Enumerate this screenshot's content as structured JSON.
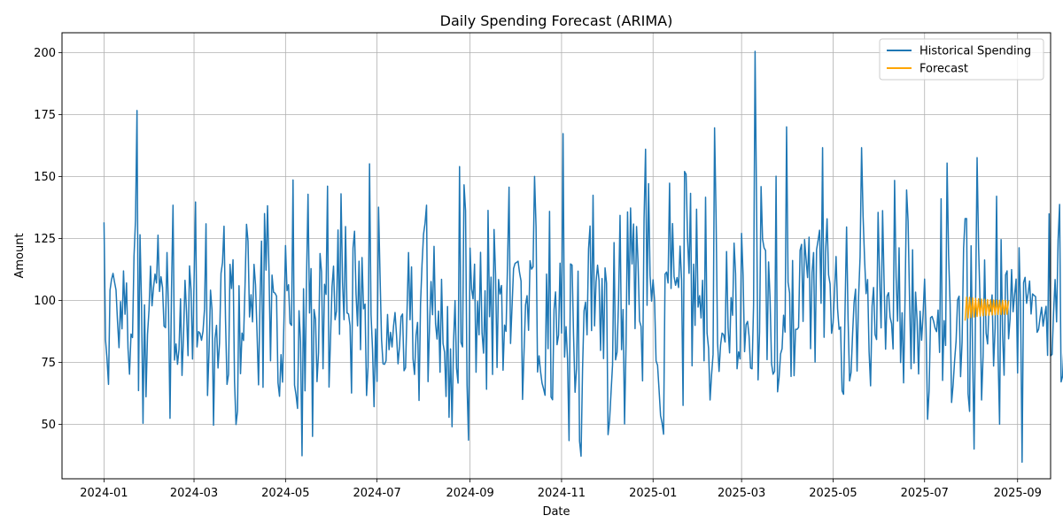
{
  "chart_data": {
    "type": "line",
    "title": "Daily Spending Forecast (ARIMA)",
    "xlabel": "Date",
    "ylabel": "Amount",
    "xlim": [
      "2023-12-04",
      "2025-09-23"
    ],
    "ylim": [
      28,
      208
    ],
    "grid": true,
    "legend_position": "top-right",
    "x_ticks": [
      "2024-01",
      "2024-03",
      "2024-05",
      "2024-07",
      "2024-09",
      "2024-11",
      "2025-01",
      "2025-03",
      "2025-05",
      "2025-07",
      "2025-09"
    ],
    "y_ticks": [
      50,
      75,
      100,
      125,
      150,
      175,
      200
    ],
    "series": [
      {
        "name": "Historical Spending",
        "color": "#1f77b4",
        "x_start": "2024-01-01",
        "x_step_days": 1,
        "values": [
          131.5,
          84.1,
          76.4,
          66.1,
          104.1,
          108.4,
          110.9,
          107.4,
          104.2,
          91.5,
          80.9,
          99.5,
          88.5,
          111.9,
          94.4,
          107.0,
          80.6,
          70.2,
          86.4,
          85.0,
          117.9,
          132.4,
          176.6,
          63.6,
          126.5,
          98.4,
          50.4,
          98.2,
          61.1,
          86.3,
          96.1,
          113.8,
          97.8,
          105.1,
          110.6,
          107.0,
          126.3,
          103.6,
          109.5,
          105.3,
          89.6,
          89.0,
          119.3,
          95.9,
          52.4,
          104.6,
          138.4,
          75.9,
          82.4,
          74.2,
          80.3,
          100.6,
          69.7,
          85.7,
          108.1,
          95.4,
          77.7,
          113.9,
          104.4,
          76.3,
          106.8,
          139.7,
          81.2,
          87.4,
          86.7,
          83.9,
          87.6,
          96.5,
          130.9,
          61.6,
          79.2,
          104.1,
          96.1,
          49.6,
          84.6,
          89.9,
          72.7,
          82.8,
          110.9,
          115.3,
          129.9,
          92.0,
          66.1,
          70.1,
          114.5,
          104.8,
          116.4,
          67.3,
          49.9,
          55.4,
          105.9,
          70.4,
          86.8,
          83.8,
          105.9,
          130.7,
          123.9,
          93.3,
          102.3,
          91.3,
          114.5,
          106.3,
          87.1,
          65.9,
          99.8,
          123.9,
          64.9,
          135.0,
          112.2,
          138.2,
          111.2,
          75.6,
          110.2,
          103.3,
          102.9,
          101.7,
          66.7,
          61.3,
          78.1,
          67.0,
          93.0,
          122.1,
          103.9,
          106.3,
          90.8,
          89.9,
          148.6,
          65.8,
          61.9,
          56.4,
          95.8,
          83.5,
          37.3,
          104.7,
          63.5,
          108.7,
          142.8,
          94.9,
          112.8,
          45.1,
          96.3,
          92.3,
          67.2,
          78.9,
          118.9,
          111.4,
          72.4,
          106.5,
          102.4,
          146.1,
          65.0,
          84.6,
          105.5,
          113.8,
          92.2,
          95.7,
          128.4,
          86.3,
          143.0,
          107.2,
          92.2,
          129.8,
          94.9,
          94.5,
          89.8,
          62.6,
          121.2,
          127.9,
          102.6,
          89.7,
          115.8,
          80.1,
          117.3,
          96.6,
          98.5,
          61.6,
          73.2,
          155.1,
          94.2,
          80.1,
          57.1,
          88.4,
          67.3,
          137.6,
          110.2,
          84.3,
          74.4,
          74.2,
          75.6,
          94.3,
          80.1,
          87.1,
          81.2,
          89.6,
          95.1,
          85.9,
          74.4,
          81.5,
          93.4,
          94.5,
          71.6,
          72.8,
          95.8,
          119.3,
          92.2,
          113.5,
          76.3,
          70.1,
          85.8,
          91.1,
          59.6,
          98.7,
          114.5,
          126.7,
          131.1,
          138.4,
          67.2,
          89.7,
          107.6,
          94.2,
          121.8,
          90.5,
          84.4,
          95.7,
          71.0,
          108.5,
          82.6,
          79.1,
          61.2,
          97.5,
          52.8,
          80.4,
          49.0,
          83.1,
          99.9,
          72.6,
          66.6,
          154.0,
          83.0,
          81.2,
          146.6,
          136.2,
          65.8,
          43.6,
          121.1,
          104.6,
          100.6,
          114.6,
          71.0,
          99.6,
          86.1,
          119.4,
          86.8,
          78.7,
          103.9,
          64.1,
          136.3,
          93.4,
          109.4,
          70.1,
          128.6,
          110.8,
          72.9,
          108.4,
          102.6,
          106.0,
          71.8,
          90.0,
          87.5,
          115.1,
          145.7,
          82.6,
          97.5,
          112.8,
          114.9,
          115.3,
          115.8,
          111.2,
          107.8,
          60.0,
          79.5,
          98.2,
          101.9,
          87.9,
          116.0,
          112.6,
          113.5,
          150.0,
          129.7,
          71.1,
          77.6,
          71.3,
          66.6,
          64.3,
          61.7,
          110.6,
          80.5,
          135.9,
          61.0,
          59.9,
          96.3,
          103.4,
          82.1,
          86.0,
          115.0,
          86.8,
          167.3,
          77.1,
          89.4,
          76.1,
          43.4,
          114.7,
          114.2,
          86.0,
          62.9,
          72.7,
          111.8,
          43.2,
          37.1,
          72.3,
          95.8,
          99.3,
          86.1,
          120.8,
          130.0,
          87.8,
          142.4,
          89.7,
          107.5,
          114.2,
          107.9,
          79.8,
          108.8,
          76.5,
          113.1,
          106.9,
          45.8,
          51.5,
          62.9,
          74.1,
          123.3,
          76.0,
          79.1,
          100.1,
          134.3,
          80.1,
          96.3,
          50.1,
          82.7,
          135.7,
          98.3,
          137.3,
          114.7,
          130.8,
          88.6,
          129.8,
          115.1,
          91.7,
          89.5,
          67.5,
          132.9,
          161.0,
          98.0,
          147.1,
          110.1,
          99.7,
          108.3,
          100.2,
          75.6,
          73.8,
          63.9,
          53.5,
          50.5,
          46.0,
          110.6,
          111.4,
          107.0,
          147.3,
          104.8,
          131.0,
          109.6,
          106.1,
          109.2,
          105.2,
          121.9,
          108.4,
          57.6,
          152.0,
          150.9,
          124.8,
          110.9,
          143.2,
          73.6,
          114.6,
          89.9,
          136.8,
          97.3,
          101.9,
          92.9,
          108.1,
          75.6,
          141.6,
          86.8,
          80.7,
          59.8,
          69.9,
          78.2,
          169.6,
          133.8,
          82.9,
          71.3,
          82.0,
          86.8,
          86.2,
          83.2,
          119.7,
          88.9,
          78.8,
          101.1,
          94.0,
          123.1,
          110.8,
          72.4,
          79.2,
          76.4,
          127.0,
          110.2,
          79.3,
          90.2,
          91.5,
          85.5,
          72.7,
          72.4,
          98.1,
          200.5,
          138.3,
          67.9,
          87.3,
          145.9,
          124.7,
          121.2,
          120.1,
          76.1,
          115.5,
          100.6,
          74.4,
          70.2,
          71.4,
          150.1,
          63.1,
          68.8,
          78.4,
          80.5,
          94.0,
          87.2,
          170.0,
          107.3,
          103.0,
          69.3,
          116.1,
          69.6,
          88.3,
          88.3,
          89.1,
          120.2,
          122.6,
          91.5,
          124.5,
          116.5,
          109.2,
          125.5,
          80.5,
          111.2,
          119.3,
          75.1,
          120.5,
          124.2,
          128.3,
          98.8,
          161.6,
          85.1,
          119.5,
          132.9,
          110.3,
          106.6,
          86.7,
          90.9,
          103.9,
          117.7,
          96.6,
          88.3,
          89.3,
          63.5,
          62.1,
          97.0,
          129.6,
          92.4,
          67.5,
          70.9,
          86.3,
          99.2,
          104.5,
          71.5,
          101.2,
          117.6,
          161.6,
          134.0,
          116.6,
          102.7,
          108.4,
          79.3,
          65.5,
          97.6,
          105.2,
          86.2,
          84.2,
          135.5,
          109.6,
          88.9,
          136.2,
          107.4,
          80.3,
          101.7,
          103.1,
          93.2,
          90.6,
          80.4,
          148.4,
          109.5,
          91.6,
          121.2,
          74.9,
          95.0,
          66.7,
          101.3,
          144.5,
          131.9,
          99.8,
          72.4,
          120.4,
          74.7,
          103.3,
          92.0,
          70.3,
          95.6,
          83.9,
          94.3,
          108.6,
          88.5,
          52.0,
          63.5,
          93.0,
          93.5,
          91.6,
          88.8,
          87.4,
          96.1,
          79.0,
          141.0,
          67.7,
          91.8,
          81.8,
          155.4,
          118.3,
          98.7,
          58.8,
          65.8,
          75.6,
          83.6,
          100.2,
          101.7,
          69.2,
          83.2,
          121.0,
          133.0,
          133.0,
          62.3,
          55.2,
          122.0,
          79.2,
          40.0,
          99.3,
          157.6,
          121.5,
          98.8,
          59.8,
          77.5,
          116.3,
          86.8,
          82.4,
          98.1,
          95.6,
          102.2,
          73.5,
          88.7,
          142.0,
          77.8,
          50.0,
          124.5,
          86.3,
          69.8,
          110.3,
          111.9,
          84.5,
          92.7,
          112.4,
          95.4,
          102.2,
          108.6,
          70.7,
          121.2,
          96.9,
          34.7,
          107.2,
          109.3,
          98.8,
          102.8,
          107.8,
          94.5,
          102.6,
          102.0,
          101.5,
          87.1,
          88.3,
          93.2,
          97.2,
          89.6,
          93.9,
          97.6,
          77.8,
          134.9,
          77.6,
          78.2,
          95.5,
          108.4,
          91.3,
          124.5,
          138.7,
          67.1,
          69.4,
          82.6
        ]
      },
      {
        "name": "Forecast",
        "color": "#ffa500",
        "x_start": "2025-07-28",
        "x_step_days": 1,
        "values": [
          91.8,
          101.3,
          92.9,
          101.2,
          93.1,
          101.0,
          93.3,
          100.8,
          93.5,
          100.6,
          93.7,
          100.5,
          93.8,
          100.4,
          93.9,
          100.3,
          94.0,
          100.2,
          94.1,
          100.1,
          94.2,
          100.1,
          94.3,
          100.0,
          94.3,
          100.0,
          94.4,
          100.0,
          94.4,
          99.9
        ]
      }
    ]
  }
}
